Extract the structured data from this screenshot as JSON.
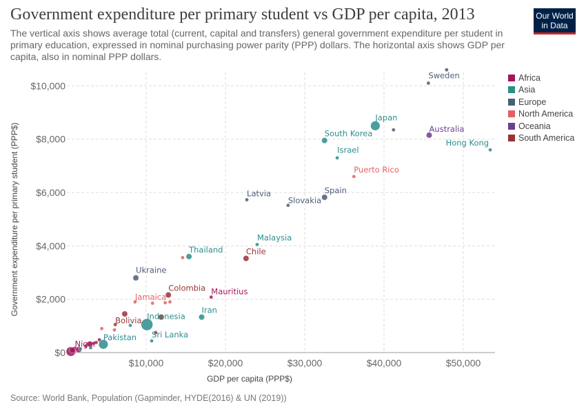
{
  "header": {
    "title": "Government expenditure per primary student vs GDP per capita, 2013",
    "subtitle": "The vertical axis shows average total (current, capital and transfers) general government expenditure per student in primary education, expressed in nominal purchasing power parity (PPP) dollars. The horizontal axis shows GDP per capita, also in nominal PPP dollars.",
    "logo_line1": "Our World",
    "logo_line2": "in Data"
  },
  "footer": {
    "source": "Source: World Bank, Population (Gapminder, HYDE(2016) & UN (2019))"
  },
  "colors": {
    "Africa": "#a2175c",
    "Asia": "#2c8d8c",
    "Europe": "#4c5c78",
    "North America": "#e56065",
    "Oceania": "#6d3e91",
    "South America": "#9a3236"
  },
  "chart_data": {
    "type": "scatter",
    "title": "Government expenditure per primary student vs GDP per capita, 2013",
    "xlabel": "GDP per capita (PPP$)",
    "ylabel": "Government expenditure per primary student (PPP$)",
    "xlim": [
      0,
      54000
    ],
    "ylim": [
      0,
      10500
    ],
    "x_ticks": [
      10000,
      20000,
      30000,
      40000,
      50000
    ],
    "x_tick_labels": [
      "$10,000",
      "$20,000",
      "$30,000",
      "$40,000",
      "$50,000"
    ],
    "y_ticks": [
      0,
      2000,
      4000,
      6000,
      8000,
      10000
    ],
    "y_tick_labels": [
      "$0",
      "$2,000",
      "$4,000",
      "$6,000",
      "$8,000",
      "$10,000"
    ],
    "grid": true,
    "legend_position": "right",
    "size_encoding": "population",
    "series": [
      {
        "name": "Africa",
        "points": [
          {
            "label": "Mauritius",
            "x": 18200,
            "y": 2080,
            "size": "small"
          },
          {
            "label": "Niger",
            "x": 1000,
            "y": 120,
            "size": "medium"
          },
          {
            "label": "",
            "x": 500,
            "y": 40,
            "size": "large"
          },
          {
            "label": "",
            "x": 700,
            "y": 90,
            "size": "medium"
          },
          {
            "label": "",
            "x": 1500,
            "y": 110,
            "size": "medium"
          },
          {
            "label": "",
            "x": 2400,
            "y": 250,
            "size": "small"
          },
          {
            "label": "",
            "x": 2900,
            "y": 320,
            "size": "medium"
          },
          {
            "label": "",
            "x": 3400,
            "y": 350,
            "size": "small"
          },
          {
            "label": "",
            "x": 4100,
            "y": 480,
            "size": "small"
          }
        ]
      },
      {
        "name": "Asia",
        "points": [
          {
            "label": "Japan",
            "x": 38900,
            "y": 8500,
            "size": "large"
          },
          {
            "label": "South Korea",
            "x": 32500,
            "y": 7950,
            "size": "medium"
          },
          {
            "label": "Israel",
            "x": 34100,
            "y": 7300,
            "size": "small"
          },
          {
            "label": "Hong Kong",
            "x": 53400,
            "y": 7600,
            "size": "small"
          },
          {
            "label": "Malaysia",
            "x": 24000,
            "y": 4050,
            "size": "small"
          },
          {
            "label": "Thailand",
            "x": 15400,
            "y": 3600,
            "size": "medium"
          },
          {
            "label": "Iran",
            "x": 17000,
            "y": 1330,
            "size": "medium"
          },
          {
            "label": "Indonesia",
            "x": 10100,
            "y": 1050,
            "size": "xlarge"
          },
          {
            "label": "Pakistan",
            "x": 4600,
            "y": 310,
            "size": "large"
          },
          {
            "label": "Sri Lanka",
            "x": 10700,
            "y": 440,
            "size": "small"
          },
          {
            "label": "",
            "x": 1700,
            "y": 140,
            "size": "small"
          },
          {
            "label": "",
            "x": 3000,
            "y": 180,
            "size": "small"
          },
          {
            "label": "",
            "x": 8000,
            "y": 1020,
            "size": "small"
          }
        ]
      },
      {
        "name": "Europe",
        "points": [
          {
            "label": "Sweden",
            "x": 45600,
            "y": 10100,
            "size": "small"
          },
          {
            "label": "",
            "x": 47900,
            "y": 10600,
            "size": "small"
          },
          {
            "label": "",
            "x": 41200,
            "y": 8350,
            "size": "small"
          },
          {
            "label": "Spain",
            "x": 32500,
            "y": 5820,
            "size": "medium"
          },
          {
            "label": "Slovakia",
            "x": 27900,
            "y": 5520,
            "size": "small"
          },
          {
            "label": "Latvia",
            "x": 22700,
            "y": 5730,
            "size": "small"
          },
          {
            "label": "Ukraine",
            "x": 8700,
            "y": 2800,
            "size": "medium"
          }
        ]
      },
      {
        "name": "North America",
        "points": [
          {
            "label": "Puerto Rico",
            "x": 36200,
            "y": 6600,
            "size": "small"
          },
          {
            "label": "Jamaica",
            "x": 8600,
            "y": 1900,
            "size": "small"
          },
          {
            "label": "",
            "x": 14600,
            "y": 3560,
            "size": "small"
          },
          {
            "label": "",
            "x": 10800,
            "y": 1850,
            "size": "small"
          },
          {
            "label": "",
            "x": 12400,
            "y": 1870,
            "size": "small"
          },
          {
            "label": "",
            "x": 13000,
            "y": 1900,
            "size": "small"
          },
          {
            "label": "",
            "x": 4400,
            "y": 900,
            "size": "small"
          },
          {
            "label": "",
            "x": 6000,
            "y": 850,
            "size": "small"
          }
        ]
      },
      {
        "name": "Oceania",
        "points": [
          {
            "label": "Australia",
            "x": 45700,
            "y": 8150,
            "size": "medium"
          }
        ]
      },
      {
        "name": "South America",
        "points": [
          {
            "label": "Chile",
            "x": 22600,
            "y": 3530,
            "size": "medium"
          },
          {
            "label": "Colombia",
            "x": 12800,
            "y": 2160,
            "size": "medium"
          },
          {
            "label": "Bolivia",
            "x": 6100,
            "y": 1050,
            "size": "small"
          },
          {
            "label": "",
            "x": 7300,
            "y": 1450,
            "size": "medium"
          },
          {
            "label": "",
            "x": 11900,
            "y": 1330,
            "size": "medium"
          },
          {
            "label": "",
            "x": 11200,
            "y": 750,
            "size": "small"
          },
          {
            "label": "",
            "x": 3700,
            "y": 380,
            "size": "small"
          }
        ]
      }
    ]
  }
}
